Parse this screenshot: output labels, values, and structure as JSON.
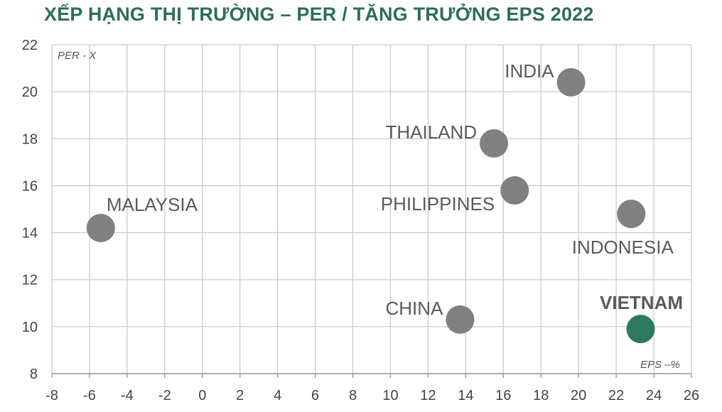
{
  "chart_data": {
    "type": "scatter",
    "title": "XẾP HẠNG THỊ TRƯỜNG – PER / TĂNG TRƯỞNG EPS 2022",
    "xlabel": "EPS –%",
    "ylabel": "PER - X",
    "xlim": [
      -8,
      26
    ],
    "ylim": [
      8,
      22
    ],
    "x_ticks": [
      -8,
      -6,
      -4,
      -2,
      0,
      2,
      4,
      6,
      8,
      10,
      12,
      14,
      16,
      18,
      20,
      22,
      24,
      26
    ],
    "y_ticks": [
      8,
      10,
      12,
      14,
      16,
      18,
      20,
      22
    ],
    "grid": true,
    "colors": {
      "default": "#808080",
      "highlight": "#2e7a5f",
      "grid": "#cccccc",
      "title": "#2f6d57"
    },
    "points": [
      {
        "label": "INDIA",
        "x": 19.6,
        "y": 20.4,
        "label_pos": "left-top"
      },
      {
        "label": "THAILAND",
        "x": 15.5,
        "y": 17.8,
        "label_pos": "left-top"
      },
      {
        "label": "PHILIPPINES",
        "x": 16.6,
        "y": 15.8,
        "label_pos": "left-bottom"
      },
      {
        "label": "MALAYSIA",
        "x": -5.4,
        "y": 14.2,
        "label_pos": "right-top"
      },
      {
        "label": "INDONESIA",
        "x": 22.8,
        "y": 14.8,
        "label_pos": "below"
      },
      {
        "label": "CHINA",
        "x": 13.7,
        "y": 10.3,
        "label_pos": "left-top"
      },
      {
        "label": "VIETNAM",
        "x": 23.3,
        "y": 9.9,
        "label_pos": "above",
        "highlight": true
      }
    ]
  }
}
